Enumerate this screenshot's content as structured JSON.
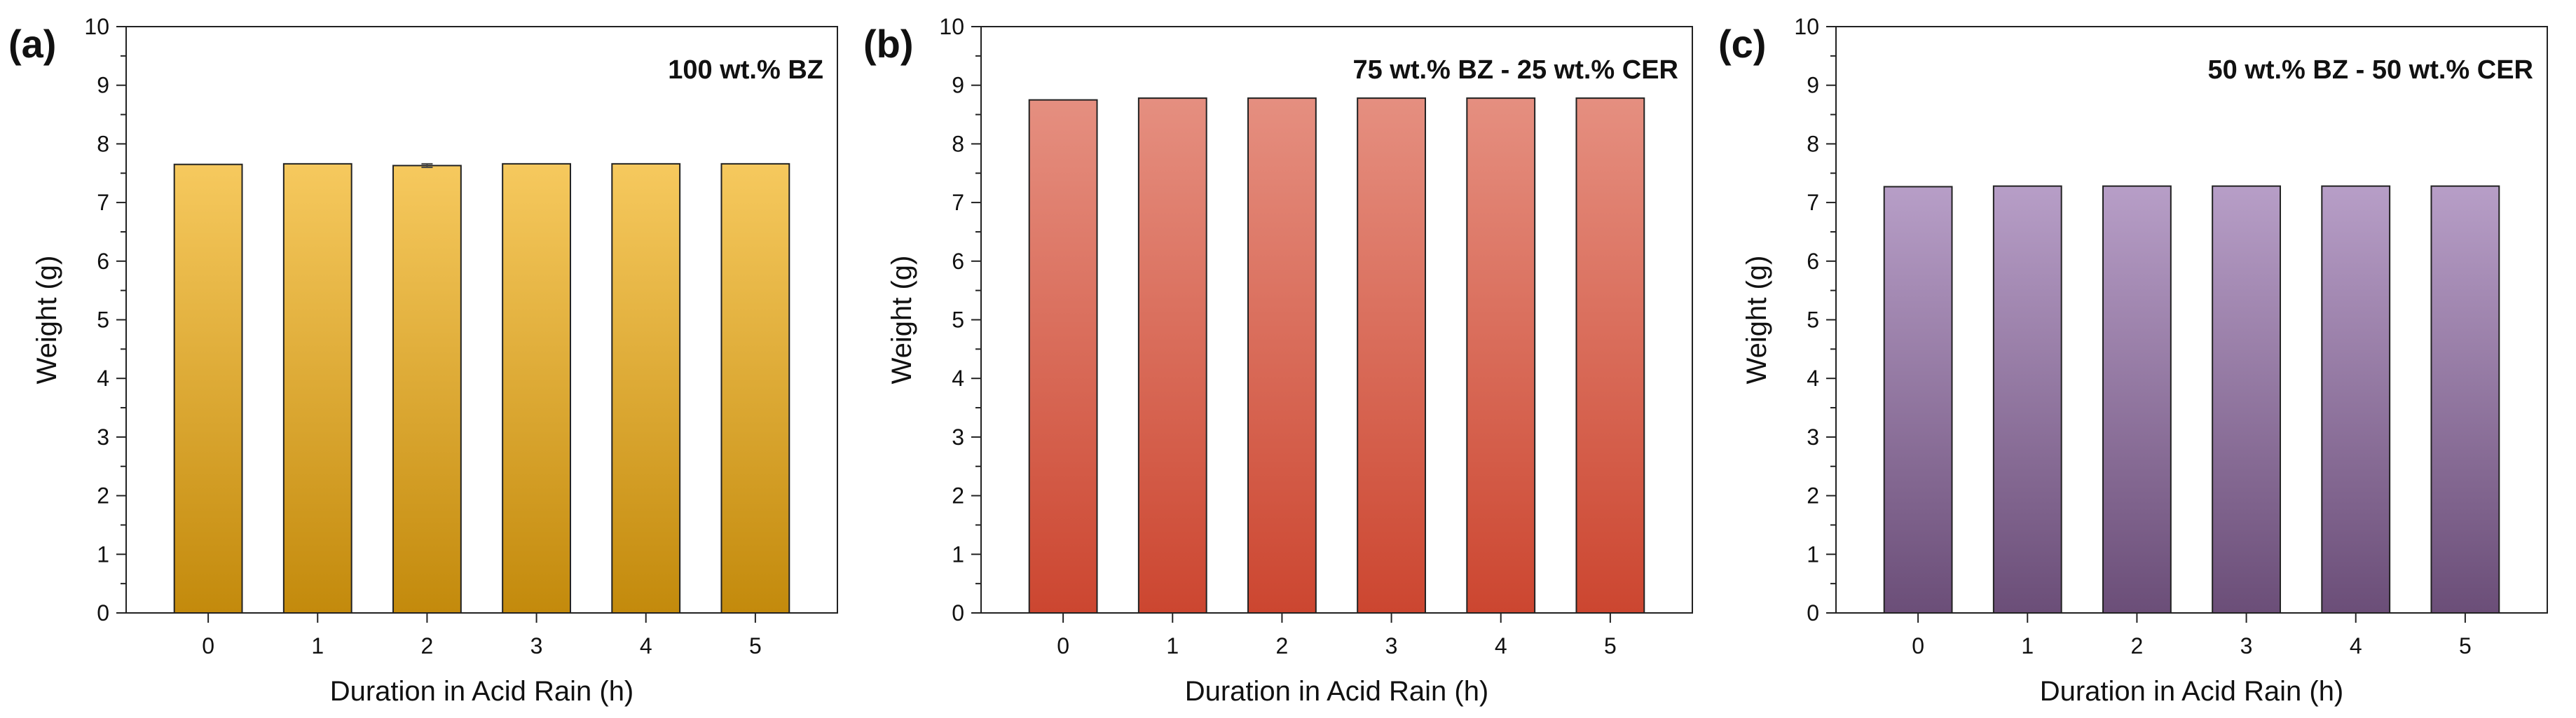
{
  "chart_data": [
    {
      "type": "bar",
      "panel_label": "(a)",
      "title": "100 wt.% BZ",
      "xlabel": "Duration in Acid Rain (h)",
      "ylabel": "Weight (g)",
      "categories": [
        "0",
        "1",
        "2",
        "3",
        "4",
        "5"
      ],
      "values": [
        7.65,
        7.66,
        7.63,
        7.66,
        7.66,
        7.66
      ],
      "errors": [
        0,
        0,
        0.03,
        0,
        0,
        0
      ],
      "ylim": [
        0,
        10
      ],
      "yticks": [
        "0",
        "1",
        "2",
        "3",
        "4",
        "5",
        "6",
        "7",
        "8",
        "9",
        "10"
      ],
      "colors": {
        "top": "#F6C95E",
        "bottom": "#C38A0C"
      }
    },
    {
      "type": "bar",
      "panel_label": "(b)",
      "title": "75 wt.% BZ - 25 wt.% CER",
      "xlabel": "Duration in Acid Rain (h)",
      "ylabel": "Weight (g)",
      "categories": [
        "0",
        "1",
        "2",
        "3",
        "4",
        "5"
      ],
      "values": [
        8.75,
        8.78,
        8.78,
        8.78,
        8.78,
        8.78
      ],
      "errors": [
        0,
        0,
        0,
        0,
        0,
        0
      ],
      "ylim": [
        0,
        10
      ],
      "yticks": [
        "0",
        "1",
        "2",
        "3",
        "4",
        "5",
        "6",
        "7",
        "8",
        "9",
        "10"
      ],
      "colors": {
        "top": "#E58F80",
        "bottom": "#CC4630"
      }
    },
    {
      "type": "bar",
      "panel_label": "(c)",
      "title": "50 wt.% BZ - 50 wt.% CER",
      "xlabel": "Duration in Acid Rain (h)",
      "ylabel": "Weight (g)",
      "categories": [
        "0",
        "1",
        "2",
        "3",
        "4",
        "5"
      ],
      "values": [
        7.27,
        7.28,
        7.28,
        7.28,
        7.28,
        7.28
      ],
      "errors": [
        0,
        0,
        0,
        0,
        0,
        0
      ],
      "ylim": [
        0,
        10
      ],
      "yticks": [
        "0",
        "1",
        "2",
        "3",
        "4",
        "5",
        "6",
        "7",
        "8",
        "9",
        "10"
      ],
      "colors": {
        "top": "#B79EC7",
        "bottom": "#6B4E78"
      }
    }
  ]
}
